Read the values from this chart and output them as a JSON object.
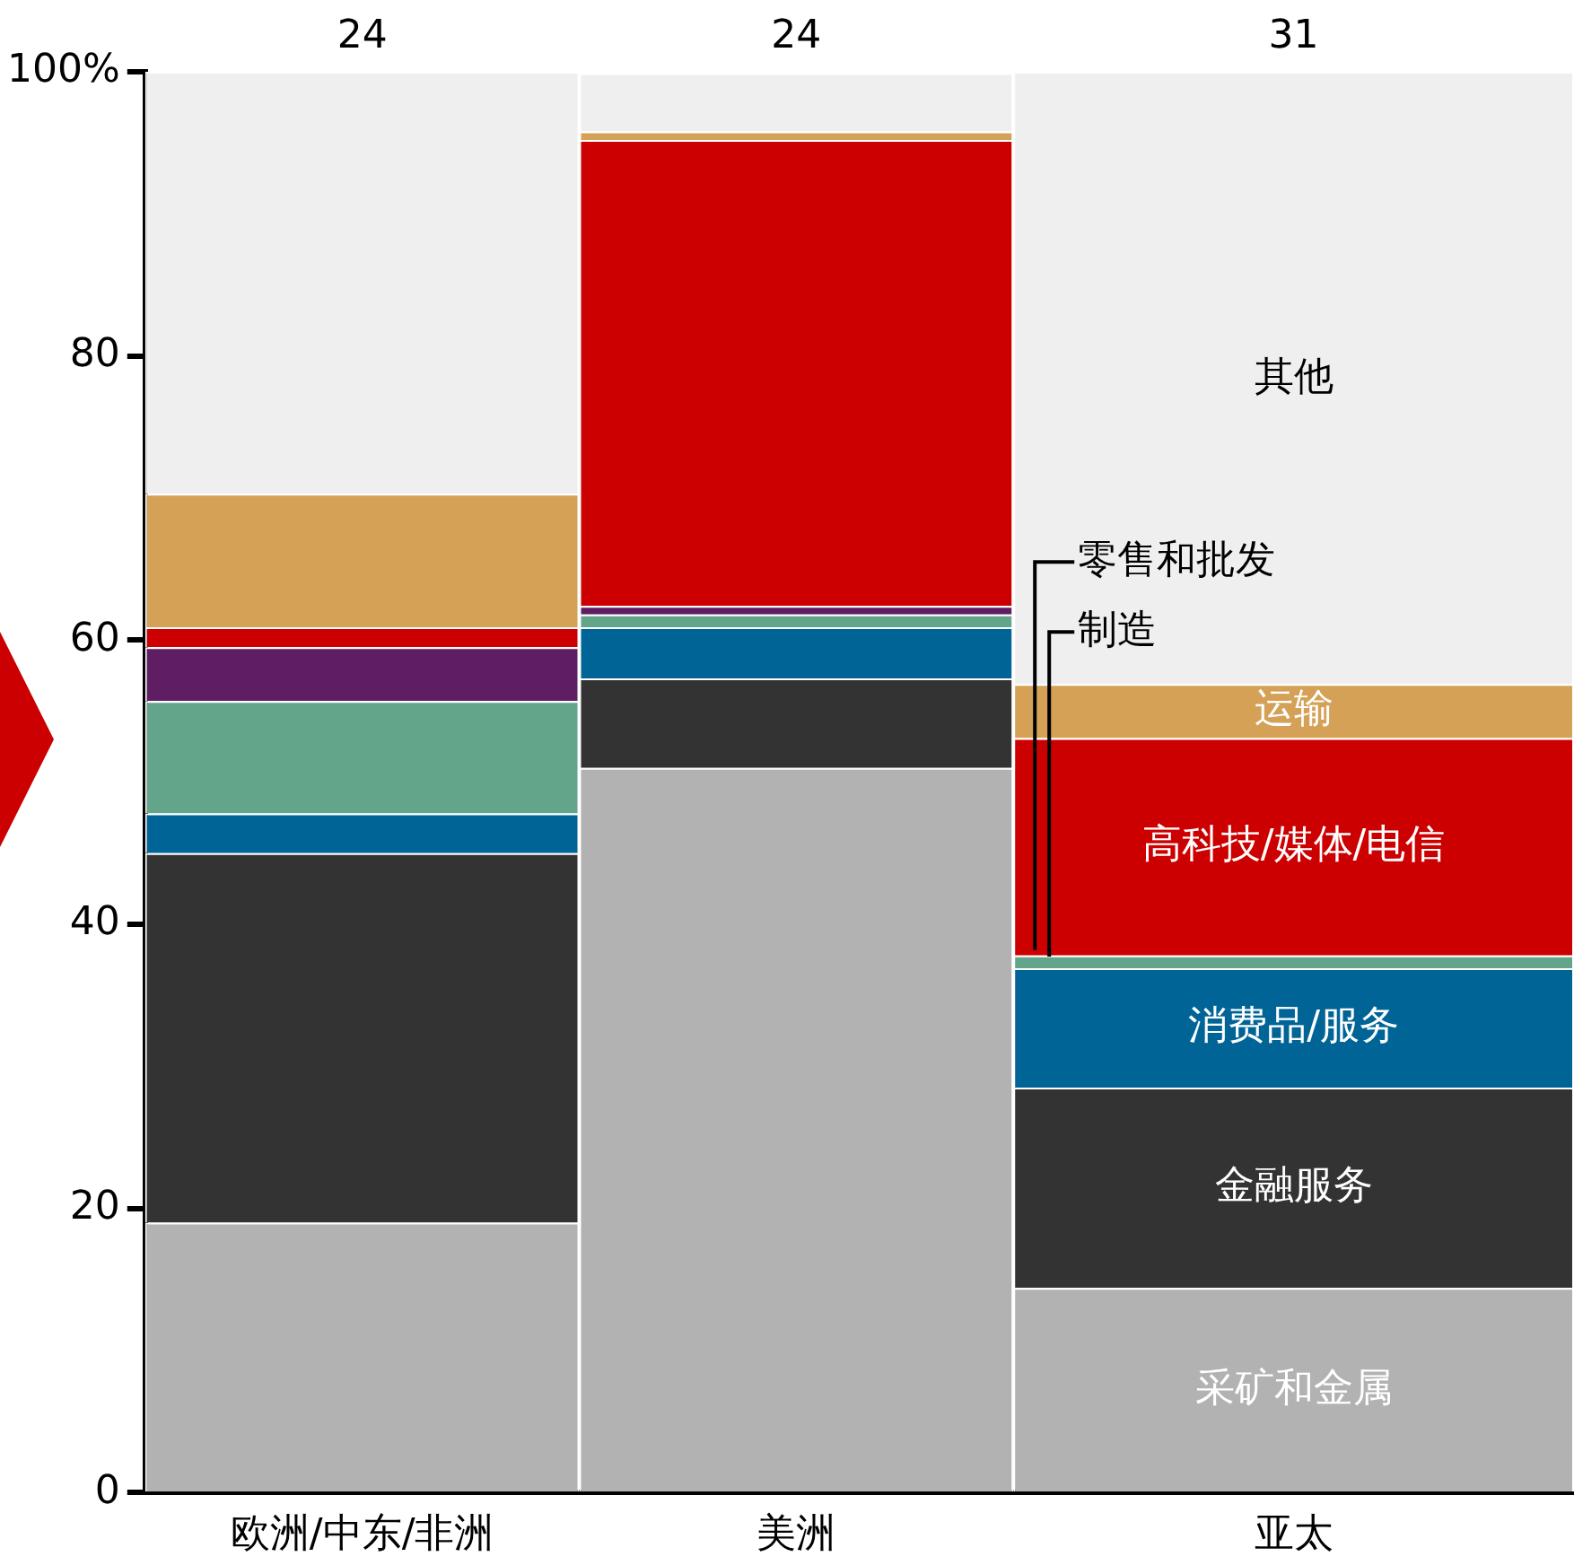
{
  "chart_data": {
    "type": "bar",
    "stacked": true,
    "legend": false,
    "categories": [
      "欧洲/中东/非洲",
      "美洲",
      "亚太"
    ],
    "annotations": [
      {
        "text": "24",
        "x": "欧洲/中东/非洲",
        "y": 100
      },
      {
        "text": "24",
        "x": "美洲",
        "y": 100
      },
      {
        "text": "31",
        "x": "亚太",
        "y": 100
      }
    ],
    "ylim": [
      0,
      100
    ],
    "yticks": [
      0,
      20,
      40,
      60,
      80,
      {
        "value": 100,
        "label": "100%"
      }
    ],
    "series": [
      {
        "name": "采矿和金属",
        "color": "#b2b2b2",
        "values": [
          19.0,
          51.0,
          14.4
        ]
      },
      {
        "name": "金融服务",
        "color": "#333333",
        "values": [
          26.0,
          6.3,
          14.1
        ]
      },
      {
        "name": "消费品/服务",
        "color": "#006496",
        "values": [
          2.8,
          3.6,
          8.4
        ]
      },
      {
        "name": "制造",
        "color": "#62a58b",
        "values": [
          7.9,
          0.9,
          0.9
        ]
      },
      {
        "name": "零售和批发",
        "color": "#5f1e64",
        "values": [
          3.8,
          0.6,
          0
        ]
      },
      {
        "name": "高科技/媒体/电信",
        "color": "#cc0000",
        "values": [
          1.4,
          32.8,
          15.3
        ]
      },
      {
        "name": "运输",
        "color": "#d4a156",
        "values": [
          9.4,
          0.6,
          3.8
        ]
      },
      {
        "name": "其他",
        "color": "#efefef",
        "values": [
          29.7,
          4.1,
          43.1
        ]
      }
    ]
  }
}
